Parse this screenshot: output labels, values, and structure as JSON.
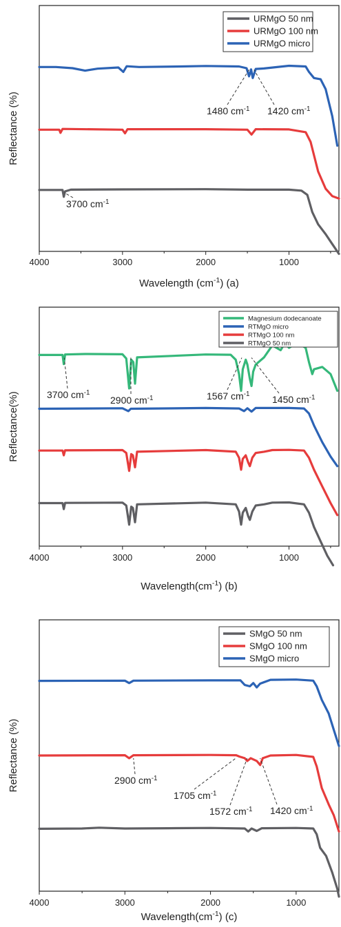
{
  "colors": {
    "grey": "#5f5f63",
    "red": "#e63c3c",
    "blue": "#2c63b5",
    "green": "#35b87a",
    "axis": "#222222"
  },
  "chart_data": [
    {
      "type": "line",
      "xlabel": "Wavelength (cm",
      "xlabel_sup": "-1",
      "xlabel_tail": ") (a)",
      "ylabel": "Reflectance (%)",
      "xlim": [
        4000,
        400
      ],
      "x_reversed": true,
      "xticks": [
        "4000",
        "3000",
        "2000",
        "1000"
      ],
      "legend_position": "top-right",
      "grid": false,
      "series": [
        {
          "name": "URMgO 50 nm",
          "color": "#5f5f63",
          "offset": 0.25,
          "points": [
            [
              4000,
              0
            ],
            [
              3720,
              0
            ],
            [
              3705,
              -0.028
            ],
            [
              3690,
              -0.006
            ],
            [
              3620,
              0.001
            ],
            [
              3000,
              0.002
            ],
            [
              2000,
              0.003
            ],
            [
              1500,
              0.001
            ],
            [
              1000,
              0.001
            ],
            [
              850,
              -0.003
            ],
            [
              780,
              -0.02
            ],
            [
              720,
              -0.09
            ],
            [
              650,
              -0.14
            ],
            [
              560,
              -0.18
            ],
            [
              480,
              -0.22
            ],
            [
              400,
              -0.26
            ]
          ]
        },
        {
          "name": "URMgO 100 nm",
          "color": "#e63c3c",
          "offset": 0.495,
          "points": [
            [
              4000,
              0
            ],
            [
              3760,
              0
            ],
            [
              3745,
              -0.013
            ],
            [
              3720,
              0.003
            ],
            [
              3000,
              0
            ],
            [
              2970,
              -0.015
            ],
            [
              2940,
              0.002
            ],
            [
              2000,
              0.002
            ],
            [
              1500,
              0
            ],
            [
              1450,
              -0.02
            ],
            [
              1400,
              0.002
            ],
            [
              1000,
              0.001
            ],
            [
              800,
              -0.01
            ],
            [
              740,
              -0.05
            ],
            [
              650,
              -0.17
            ],
            [
              560,
              -0.24
            ],
            [
              480,
              -0.27
            ],
            [
              400,
              -0.28
            ]
          ]
        },
        {
          "name": "URMgO micro",
          "color": "#2c63b5",
          "offset": 0.75,
          "points": [
            [
              4000,
              0
            ],
            [
              3800,
              0
            ],
            [
              3600,
              -0.005
            ],
            [
              3450,
              -0.015
            ],
            [
              3300,
              -0.007
            ],
            [
              3050,
              -0.002
            ],
            [
              2990,
              -0.02
            ],
            [
              2950,
              0.003
            ],
            [
              2800,
              0
            ],
            [
              2300,
              0.002
            ],
            [
              2000,
              0.004
            ],
            [
              1600,
              0.002
            ],
            [
              1510,
              -0.005
            ],
            [
              1480,
              -0.038
            ],
            [
              1455,
              -0.01
            ],
            [
              1435,
              -0.045
            ],
            [
              1400,
              -0.008
            ],
            [
              1300,
              -0.006
            ],
            [
              1000,
              0.005
            ],
            [
              800,
              0.002
            ],
            [
              760,
              -0.02
            ],
            [
              700,
              -0.045
            ],
            [
              620,
              -0.05
            ],
            [
              560,
              -0.09
            ],
            [
              480,
              -0.2
            ],
            [
              420,
              -0.32
            ]
          ]
        }
      ],
      "annotations": [
        {
          "text": "1480 cm",
          "sup": "-1",
          "x": 1480
        },
        {
          "text": "1420 cm",
          "sup": "-1",
          "x": 1420
        },
        {
          "text": "3700 cm",
          "sup": "-1",
          "x": 3700
        }
      ]
    },
    {
      "type": "line",
      "xlabel": "Wavelength",
      "xlabel_sup": "-1",
      "xlabel_tail": ") (b)",
      "xlabel_unit": "(cm",
      "ylabel": "Reflectance(%)",
      "xlim": [
        4000,
        400
      ],
      "x_reversed": true,
      "xticks": [
        "4000",
        "3000",
        "2000",
        "1000"
      ],
      "legend_position": "top-right",
      "grid": false,
      "series": [
        {
          "name": "Magnesium dodecanoate",
          "color": "#35b87a",
          "offset": 0.8,
          "points": [
            [
              4000,
              0
            ],
            [
              3720,
              0
            ],
            [
              3705,
              -0.038
            ],
            [
              3690,
              0.002
            ],
            [
              3450,
              0.004
            ],
            [
              3000,
              0.003
            ],
            [
              2955,
              -0.015
            ],
            [
              2920,
              -0.14
            ],
            [
              2895,
              -0.02
            ],
            [
              2870,
              -0.03
            ],
            [
              2850,
              -0.12
            ],
            [
              2825,
              -0.01
            ],
            [
              2000,
              0.002
            ],
            [
              1700,
              0.001
            ],
            [
              1640,
              -0.02
            ],
            [
              1600,
              -0.08
            ],
            [
              1575,
              -0.15
            ],
            [
              1555,
              -0.06
            ],
            [
              1520,
              -0.02
            ],
            [
              1500,
              -0.04
            ],
            [
              1470,
              -0.1
            ],
            [
              1450,
              -0.13
            ],
            [
              1430,
              -0.07
            ],
            [
              1400,
              -0.04
            ],
            [
              1300,
              -0.01
            ],
            [
              1200,
              0.04
            ],
            [
              1100,
              0.02
            ],
            [
              1050,
              0.05
            ],
            [
              1000,
              0.03
            ],
            [
              900,
              0.05
            ],
            [
              800,
              0.03
            ],
            [
              760,
              -0.03
            ],
            [
              720,
              -0.08
            ],
            [
              700,
              -0.06
            ],
            [
              600,
              -0.05
            ],
            [
              500,
              -0.08
            ],
            [
              420,
              -0.15
            ]
          ]
        },
        {
          "name": "RTMgO micro",
          "color": "#2c63b5",
          "offset": 0.575,
          "points": [
            [
              4000,
              0
            ],
            [
              3000,
              0.002
            ],
            [
              2930,
              -0.01
            ],
            [
              2900,
              0
            ],
            [
              2000,
              0.003
            ],
            [
              1600,
              0.001
            ],
            [
              1540,
              -0.01
            ],
            [
              1500,
              0.002
            ],
            [
              1450,
              -0.012
            ],
            [
              1400,
              0.003
            ],
            [
              1000,
              0.003
            ],
            [
              820,
              0.001
            ],
            [
              760,
              -0.02
            ],
            [
              700,
              -0.07
            ],
            [
              600,
              -0.14
            ],
            [
              500,
              -0.2
            ],
            [
              420,
              -0.24
            ]
          ]
        },
        {
          "name": "RTMgO 100 nm",
          "color": "#e63c3c",
          "offset": 0.4,
          "points": [
            [
              4000,
              0
            ],
            [
              3720,
              0
            ],
            [
              3705,
              -0.02
            ],
            [
              3690,
              0.001
            ],
            [
              3000,
              0.002
            ],
            [
              2955,
              -0.01
            ],
            [
              2920,
              -0.085
            ],
            [
              2895,
              -0.015
            ],
            [
              2875,
              -0.02
            ],
            [
              2850,
              -0.07
            ],
            [
              2825,
              -0.005
            ],
            [
              2000,
              0.002
            ],
            [
              1640,
              -0.005
            ],
            [
              1600,
              -0.03
            ],
            [
              1575,
              -0.08
            ],
            [
              1555,
              -0.035
            ],
            [
              1520,
              -0.02
            ],
            [
              1490,
              -0.05
            ],
            [
              1470,
              -0.065
            ],
            [
              1440,
              -0.03
            ],
            [
              1400,
              -0.01
            ],
            [
              1300,
              -0.005
            ],
            [
              1200,
              0.002
            ],
            [
              1000,
              0.003
            ],
            [
              820,
              0
            ],
            [
              760,
              -0.03
            ],
            [
              700,
              -0.08
            ],
            [
              600,
              -0.15
            ],
            [
              500,
              -0.22
            ],
            [
              420,
              -0.27
            ]
          ]
        },
        {
          "name": "RTMgO 50 nm",
          "color": "#5f5f63",
          "offset": 0.18,
          "points": [
            [
              4000,
              0
            ],
            [
              3720,
              0
            ],
            [
              3705,
              -0.025
            ],
            [
              3690,
              0.001
            ],
            [
              3000,
              0.002
            ],
            [
              2955,
              -0.01
            ],
            [
              2920,
              -0.09
            ],
            [
              2895,
              -0.015
            ],
            [
              2875,
              -0.02
            ],
            [
              2850,
              -0.08
            ],
            [
              2825,
              -0.005
            ],
            [
              2000,
              0.002
            ],
            [
              1640,
              -0.005
            ],
            [
              1600,
              -0.035
            ],
            [
              1575,
              -0.09
            ],
            [
              1555,
              -0.04
            ],
            [
              1520,
              -0.02
            ],
            [
              1490,
              -0.055
            ],
            [
              1470,
              -0.07
            ],
            [
              1440,
              -0.035
            ],
            [
              1400,
              -0.01
            ],
            [
              1300,
              -0.005
            ],
            [
              1200,
              0.002
            ],
            [
              1000,
              0.003
            ],
            [
              820,
              -0.005
            ],
            [
              760,
              -0.04
            ],
            [
              700,
              -0.1
            ],
            [
              620,
              -0.16
            ],
            [
              540,
              -0.22
            ],
            [
              470,
              -0.26
            ]
          ]
        }
      ],
      "annotations": [
        {
          "text": "3700 cm",
          "sup": "-1",
          "x": 3700
        },
        {
          "text": "2900 cm",
          "sup": "-1",
          "x": 2900
        },
        {
          "text": "1567 cm",
          "sup": "-1",
          "x": 1567
        },
        {
          "text": "1450 cm",
          "sup": "-1",
          "x": 1450
        }
      ]
    },
    {
      "type": "line",
      "xlabel": "Wavelength",
      "xlabel_sup": "-1",
      "xlabel_tail": ") (c)",
      "xlabel_unit": "(cm",
      "ylabel": "Reflectance (%)",
      "xlim": [
        4000,
        500
      ],
      "x_reversed": true,
      "xticks": [
        "4000",
        "3000",
        "2000",
        "1000"
      ],
      "legend_position": "top-right",
      "grid": false,
      "series": [
        {
          "name": "SMgO 50 nm",
          "color": "#5f5f63",
          "offset": 0.23,
          "points": [
            [
              4000,
              0
            ],
            [
              3500,
              0.001
            ],
            [
              3300,
              0.004
            ],
            [
              3000,
              0.001
            ],
            [
              2500,
              0.002
            ],
            [
              2000,
              0.003
            ],
            [
              1600,
              0.001
            ],
            [
              1560,
              -0.01
            ],
            [
              1520,
              0.001
            ],
            [
              1460,
              -0.008
            ],
            [
              1400,
              0.002
            ],
            [
              1000,
              0.003
            ],
            [
              800,
              0.001
            ],
            [
              760,
              -0.02
            ],
            [
              720,
              -0.07
            ],
            [
              650,
              -0.1
            ],
            [
              580,
              -0.16
            ],
            [
              520,
              -0.22
            ],
            [
              500,
              -0.25
            ]
          ]
        },
        {
          "name": "SMgO 100 nm",
          "color": "#e63c3c",
          "offset": 0.5,
          "points": [
            [
              4000,
              0
            ],
            [
              3000,
              0.001
            ],
            [
              2950,
              -0.01
            ],
            [
              2900,
              0.001
            ],
            [
              2000,
              0.002
            ],
            [
              1700,
              0.001
            ],
            [
              1660,
              -0.004
            ],
            [
              1600,
              -0.01
            ],
            [
              1570,
              -0.02
            ],
            [
              1530,
              -0.01
            ],
            [
              1460,
              -0.02
            ],
            [
              1420,
              -0.035
            ],
            [
              1390,
              -0.01
            ],
            [
              1300,
              0
            ],
            [
              1000,
              0.002
            ],
            [
              800,
              -0.005
            ],
            [
              760,
              -0.04
            ],
            [
              700,
              -0.12
            ],
            [
              620,
              -0.18
            ],
            [
              560,
              -0.22
            ],
            [
              500,
              -0.28
            ]
          ]
        },
        {
          "name": "SMgO micro",
          "color": "#2c63b5",
          "offset": 0.775,
          "points": [
            [
              4000,
              0
            ],
            [
              3000,
              0.001
            ],
            [
              2950,
              -0.008
            ],
            [
              2900,
              0.001
            ],
            [
              2000,
              0.002
            ],
            [
              1650,
              0.002
            ],
            [
              1600,
              -0.015
            ],
            [
              1540,
              -0.02
            ],
            [
              1500,
              -0.008
            ],
            [
              1460,
              -0.024
            ],
            [
              1420,
              -0.01
            ],
            [
              1300,
              0.004
            ],
            [
              1000,
              0.005
            ],
            [
              800,
              0.001
            ],
            [
              760,
              -0.02
            ],
            [
              700,
              -0.07
            ],
            [
              620,
              -0.12
            ],
            [
              560,
              -0.18
            ],
            [
              500,
              -0.24
            ]
          ]
        }
      ],
      "annotations": [
        {
          "text": "2900 cm",
          "sup": "-1",
          "x": 2900
        },
        {
          "text": "1705 cm",
          "sup": "-1",
          "x": 1705
        },
        {
          "text": "1572 cm",
          "sup": "-1",
          "x": 1572
        },
        {
          "text": "1420 cm",
          "sup": "-1",
          "x": 1420
        }
      ]
    }
  ]
}
